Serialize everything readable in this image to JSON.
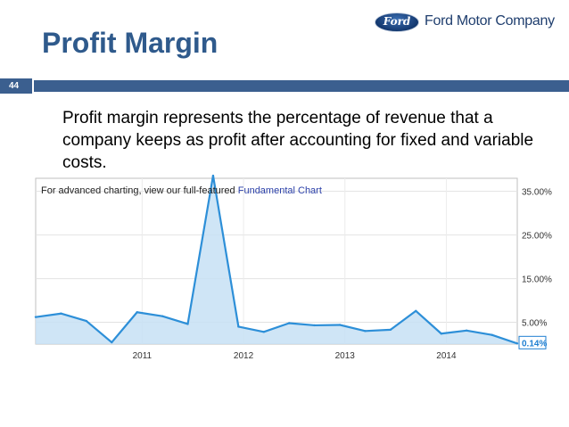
{
  "logo": {
    "emblem": "Ford",
    "company": "Ford Motor Company"
  },
  "slide": {
    "number": "44",
    "title": "Profit Margin",
    "body": "Profit margin represents the percentage of revenue that a company keeps as profit after accounting for fixed and variable costs."
  },
  "chart_note": {
    "text": "For advanced charting, view our full-featured",
    "link": "Fundamental Chart"
  },
  "colors": {
    "line": "#2d8fd8",
    "fill": "#c7e0f5",
    "title": "#2f5a8c",
    "bar": "#3b5f8f",
    "current_value": "#1f7fd1"
  },
  "chart_data": {
    "type": "area",
    "title": "",
    "xlabel": "",
    "ylabel": "",
    "x_ticks": [
      "2011",
      "2012",
      "2013",
      "2014"
    ],
    "y_ticks": [
      "5.00%",
      "15.00%",
      "25.00%",
      "35.00%"
    ],
    "ylim": [
      0,
      38
    ],
    "current_value_label": "0.14%",
    "grid": true,
    "series": [
      {
        "values": [
          6.2,
          7.0,
          5.3,
          0.4,
          7.3,
          6.4,
          4.6,
          38.6,
          4.0,
          2.8,
          4.8,
          4.3,
          4.4,
          3.0,
          3.3,
          7.6,
          2.4,
          3.1,
          2.1,
          0.14
        ]
      }
    ]
  }
}
